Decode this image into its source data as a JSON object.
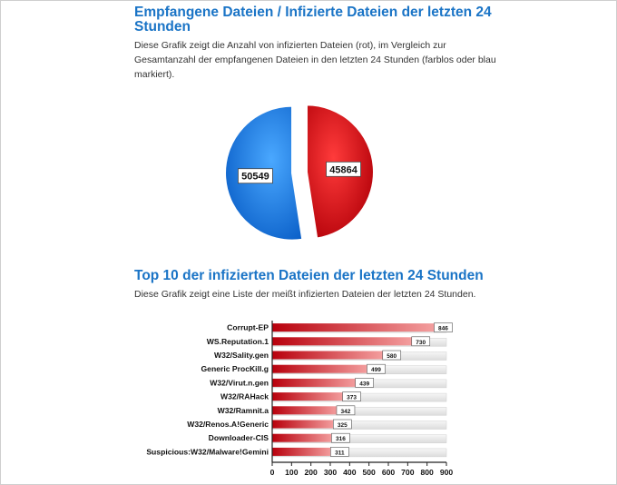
{
  "section1": {
    "title": "Empfangene Dateien / Infizierte Dateien der letzten 24 Stunden",
    "description": "Diese Grafik zeigt die Anzahl von infizierten Dateien (rot), im Vergleich zur Gesamtanzahl der empfangenen Dateien in den letzten 24 Stunden (farblos oder blau markiert)."
  },
  "section2": {
    "title": "Top 10 der infizierten Dateien der letzten 24 Stunden",
    "description": "Diese Grafik zeigt eine Liste der meißt infizierten Dateien der letzten 24 Stunden."
  },
  "chart_data": [
    {
      "type": "pie",
      "slices": [
        {
          "label": "45864",
          "value": 45864,
          "color": "#d0101a"
        },
        {
          "label": "50549",
          "value": 50549,
          "color": "#1a82e6"
        }
      ]
    },
    {
      "type": "bar",
      "orientation": "horizontal",
      "categories": [
        "Corrupt-EP",
        "WS.Reputation.1",
        "W32/Sality.gen",
        "Generic ProcKill.g",
        "W32/Virut.n.gen",
        "W32/RAHack",
        "W32/Ramnit.a",
        "W32/Renos.A!Generic",
        "Downloader-CIS",
        "Suspicious:W32/Malware!Gemini"
      ],
      "values": [
        846,
        730,
        580,
        499,
        439,
        373,
        342,
        325,
        316,
        311
      ],
      "xlim": [
        0,
        900
      ],
      "xticks": [
        "0",
        "100",
        "200",
        "300",
        "400",
        "500",
        "600",
        "700",
        "800",
        "900"
      ],
      "bar_color": "#c8141c",
      "track_color": "#e9e9e9"
    }
  ]
}
